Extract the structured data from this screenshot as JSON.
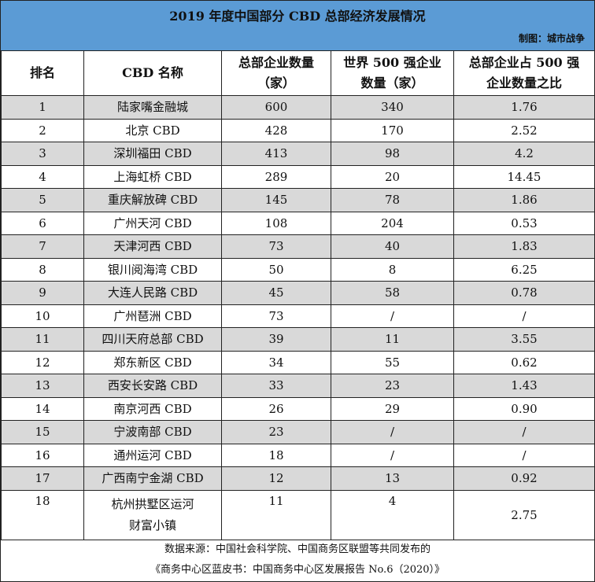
{
  "title": "2019 年度中国部分 CBD 总部经济发展情况",
  "credit": "制图：城市战争",
  "columns": [
    "排名",
    "CBD 名称",
    "总部企业数量（家）",
    "世界 500 强企业数量（家）",
    "总部企业占 500 强企业数量之比"
  ],
  "column_lines": {
    "hq": [
      "总部企业数量",
      "（家）"
    ],
    "f500": [
      "世界 500 强企业",
      "数量（家）"
    ],
    "ratio": [
      "总部企业占 500 强",
      "企业数量之比"
    ]
  },
  "rows": [
    {
      "rank": "1",
      "name": "陆家嘴金融城",
      "hq": "600",
      "f500": "340",
      "ratio": "1.76"
    },
    {
      "rank": "2",
      "name": "北京 CBD",
      "hq": "428",
      "f500": "170",
      "ratio": "2.52"
    },
    {
      "rank": "3",
      "name": "深圳福田 CBD",
      "hq": "413",
      "f500": "98",
      "ratio": "4.2"
    },
    {
      "rank": "4",
      "name": "上海虹桥 CBD",
      "hq": "289",
      "f500": "20",
      "ratio": "14.45"
    },
    {
      "rank": "5",
      "name": "重庆解放碑 CBD",
      "hq": "145",
      "f500": "78",
      "ratio": "1.86"
    },
    {
      "rank": "6",
      "name": "广州天河 CBD",
      "hq": "108",
      "f500": "204",
      "ratio": "0.53"
    },
    {
      "rank": "7",
      "name": "天津河西 CBD",
      "hq": "73",
      "f500": "40",
      "ratio": "1.83"
    },
    {
      "rank": "8",
      "name": "银川阅海湾 CBD",
      "hq": "50",
      "f500": "8",
      "ratio": "6.25"
    },
    {
      "rank": "9",
      "name": "大连人民路 CBD",
      "hq": "45",
      "f500": "58",
      "ratio": "0.78"
    },
    {
      "rank": "10",
      "name": "广州琶洲 CBD",
      "hq": "73",
      "f500": "/",
      "ratio": "/"
    },
    {
      "rank": "11",
      "name": "四川天府总部 CBD",
      "hq": "39",
      "f500": "11",
      "ratio": "3.55"
    },
    {
      "rank": "12",
      "name": "郑东新区 CBD",
      "hq": "34",
      "f500": "55",
      "ratio": "0.62"
    },
    {
      "rank": "13",
      "name": "西安长安路 CBD",
      "hq": "33",
      "f500": "23",
      "ratio": "1.43"
    },
    {
      "rank": "14",
      "name": "南京河西 CBD",
      "hq": "26",
      "f500": "29",
      "ratio": "0.90"
    },
    {
      "rank": "15",
      "name": "宁波南部 CBD",
      "hq": "23",
      "f500": "/",
      "ratio": "/"
    },
    {
      "rank": "16",
      "name": "通州运河 CBD",
      "hq": "18",
      "f500": "/",
      "ratio": "/"
    },
    {
      "rank": "17",
      "name": "广西南宁金湖 CBD",
      "hq": "12",
      "f500": "13",
      "ratio": "0.92"
    },
    {
      "rank": "18",
      "name": "杭州拱墅区运河财富小镇",
      "hq": "11",
      "f500": "4",
      "ratio": "2.75"
    }
  ],
  "footer": {
    "source": "数据来源：中国社会科学院、中国商务区联盟等共同发布的",
    "book": "《商务中心区蓝皮书：中国商务中心区发展报告 No.6（2020）》"
  },
  "colors": {
    "header_bg": "#5b9bd5",
    "row_shade": "#d9d9d9",
    "border": "#222222"
  }
}
